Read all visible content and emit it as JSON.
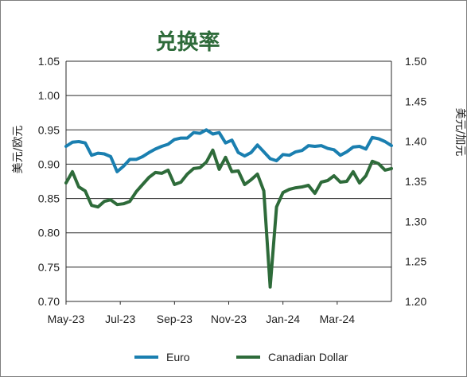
{
  "chart_data": {
    "type": "line",
    "title": "兑换率",
    "x_tick_labels": [
      "May-23",
      "Jul-23",
      "Sep-23",
      "Nov-23",
      "Jan-24",
      "Mar-24"
    ],
    "y_left": {
      "label": "美元/欧元",
      "ylim": [
        0.7,
        1.05
      ],
      "ticks": [
        "1.05",
        "1.00",
        "0.95",
        "0.90",
        "0.85",
        "0.80",
        "0.75",
        "0.70"
      ]
    },
    "y_right": {
      "label": "美元/加元",
      "ylim": [
        1.2,
        1.5
      ],
      "ticks": [
        "1.50",
        "1.45",
        "1.40",
        "1.35",
        "1.30",
        "1.25",
        "1.20"
      ]
    },
    "grid": true,
    "legend_position": "bottom",
    "series": [
      {
        "name": "Euro",
        "axis": "left",
        "color": "#1a7fb0",
        "values": [
          0.926,
          0.932,
          0.933,
          0.931,
          0.913,
          0.916,
          0.915,
          0.911,
          0.889,
          0.897,
          0.907,
          0.907,
          0.911,
          0.917,
          0.922,
          0.926,
          0.929,
          0.936,
          0.938,
          0.938,
          0.946,
          0.945,
          0.95,
          0.944,
          0.946,
          0.931,
          0.935,
          0.917,
          0.912,
          0.917,
          0.928,
          0.918,
          0.908,
          0.905,
          0.914,
          0.913,
          0.918,
          0.92,
          0.927,
          0.926,
          0.927,
          0.923,
          0.921,
          0.913,
          0.918,
          0.925,
          0.926,
          0.922,
          0.939,
          0.937,
          0.933,
          0.927
        ]
      },
      {
        "name": "Canadian Dollar",
        "axis": "right",
        "color": "#2e6b3a",
        "values": [
          1.348,
          1.362,
          1.343,
          1.338,
          1.32,
          1.318,
          1.325,
          1.327,
          1.321,
          1.322,
          1.325,
          1.337,
          1.346,
          1.355,
          1.361,
          1.36,
          1.364,
          1.346,
          1.349,
          1.359,
          1.366,
          1.367,
          1.374,
          1.389,
          1.365,
          1.38,
          1.362,
          1.363,
          1.346,
          1.352,
          1.359,
          1.338,
          1.218,
          1.318,
          1.336,
          1.34,
          1.342,
          1.343,
          1.345,
          1.335,
          1.349,
          1.351,
          1.357,
          1.349,
          1.35,
          1.362,
          1.348,
          1.357,
          1.375,
          1.372,
          1.364,
          1.366
        ]
      }
    ]
  }
}
